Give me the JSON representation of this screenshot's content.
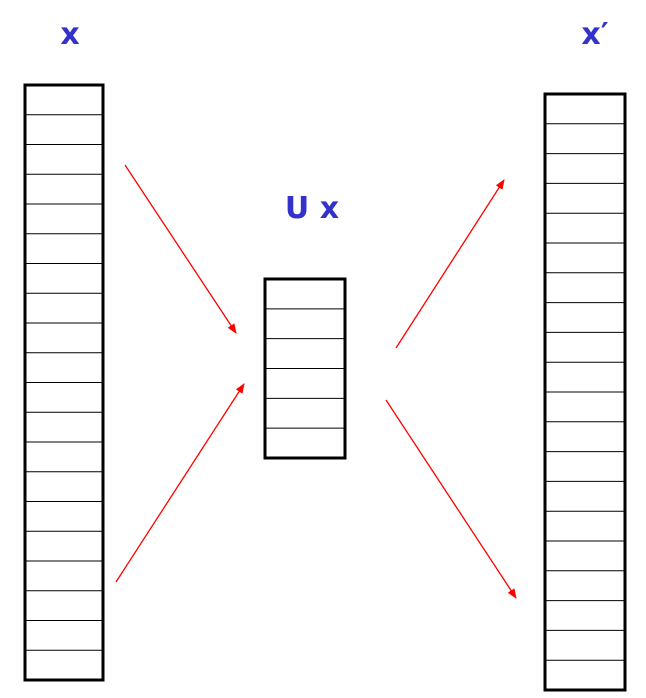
{
  "labels": {
    "input_vector": "x",
    "projected_vector": "U x",
    "reconstructed_vector": "x′"
  },
  "vectors": {
    "input": {
      "cells": 20
    },
    "projected": {
      "cells": 6
    },
    "reconstructed": {
      "cells": 20
    }
  },
  "colors": {
    "label": "#3333cc",
    "arrow": "#ff0000",
    "box": "#000000"
  }
}
